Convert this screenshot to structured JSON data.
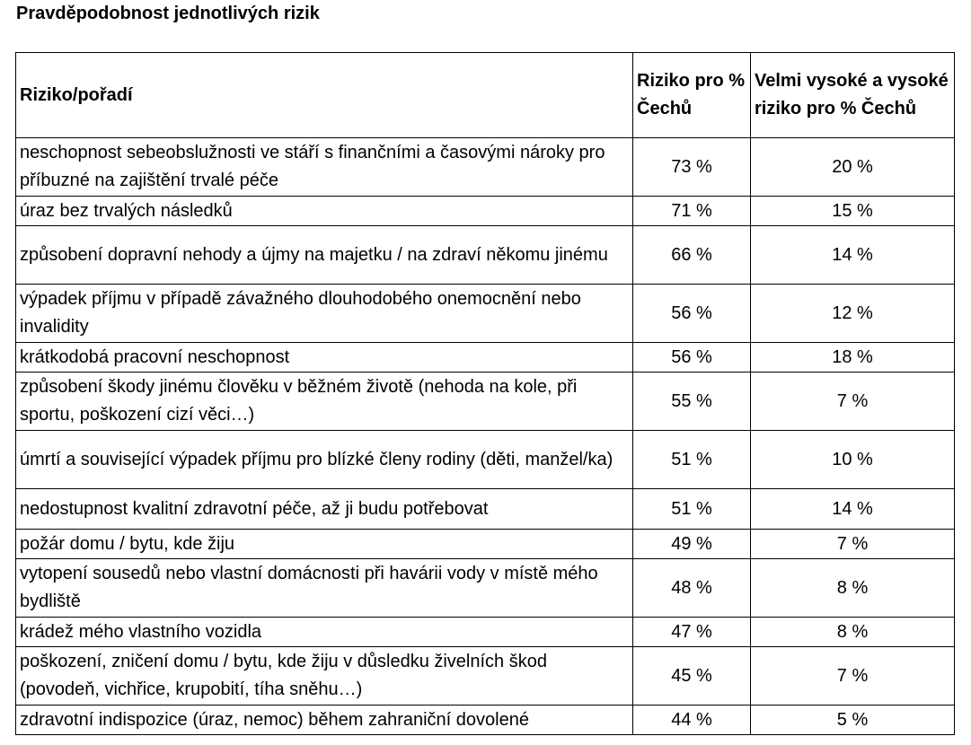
{
  "title": "Pravděpodobnost jednotlivých rizik",
  "table": {
    "headers": {
      "risk": "Riziko/pořadí",
      "probability": "Riziko pro % Čechů",
      "high": "Velmi vysoké a vysoké riziko pro % Čechů"
    },
    "rows": [
      {
        "risk": "neschopnost sebeobslužnosti ve stáří s finančními a časovými nároky pro příbuzné na zajištění trvalé péče",
        "probability": "73 %",
        "high": "20 %"
      },
      {
        "risk": "úraz bez trvalých následků",
        "probability": "71 %",
        "high": "15 %"
      },
      {
        "risk": "způsobení dopravní nehody a újmy na majetku / na zdraví někomu jinému",
        "probability": "66 %",
        "high": "14 %"
      },
      {
        "risk": "výpadek příjmu v případě závažného dlouhodobého onemocnění nebo invalidity",
        "probability": "56 %",
        "high": "12 %"
      },
      {
        "risk": "krátkodobá pracovní neschopnost",
        "probability": "56 %",
        "high": "18 %"
      },
      {
        "risk": "způsobení škody jinému člověku v běžném životě (nehoda na kole, při sportu, poškození cizí věci…)",
        "probability": "55 %",
        "high": "7 %"
      },
      {
        "risk": "úmrtí a související výpadek příjmu pro blízké členy rodiny (děti, manžel/ka)",
        "probability": "51 %",
        "high": "10 %"
      },
      {
        "risk": "nedostupnost kvalitní zdravotní péče, až ji budu potřebovat",
        "probability": "51 %",
        "high": "14 %"
      },
      {
        "risk": "požár domu / bytu, kde žiju",
        "probability": "49 %",
        "high": "7 %"
      },
      {
        "risk": "vytopení sousedů nebo vlastní domácnosti při havárii vody v místě mého bydliště",
        "probability": "48 %",
        "high": "8 %"
      },
      {
        "risk": "krádež mého vlastního vozidla",
        "probability": "47 %",
        "high": "8 %"
      },
      {
        "risk": "poškození, zničení domu / bytu, kde žiju v důsledku živelních škod (povodeň, vichřice, krupobití, tíha sněhu…)",
        "probability": "45 %",
        "high": "7 %"
      },
      {
        "risk": "zdravotní indispozice (úraz, nemoc) během zahraniční dovolené",
        "probability": "44 %",
        "high": "5 %"
      }
    ]
  }
}
